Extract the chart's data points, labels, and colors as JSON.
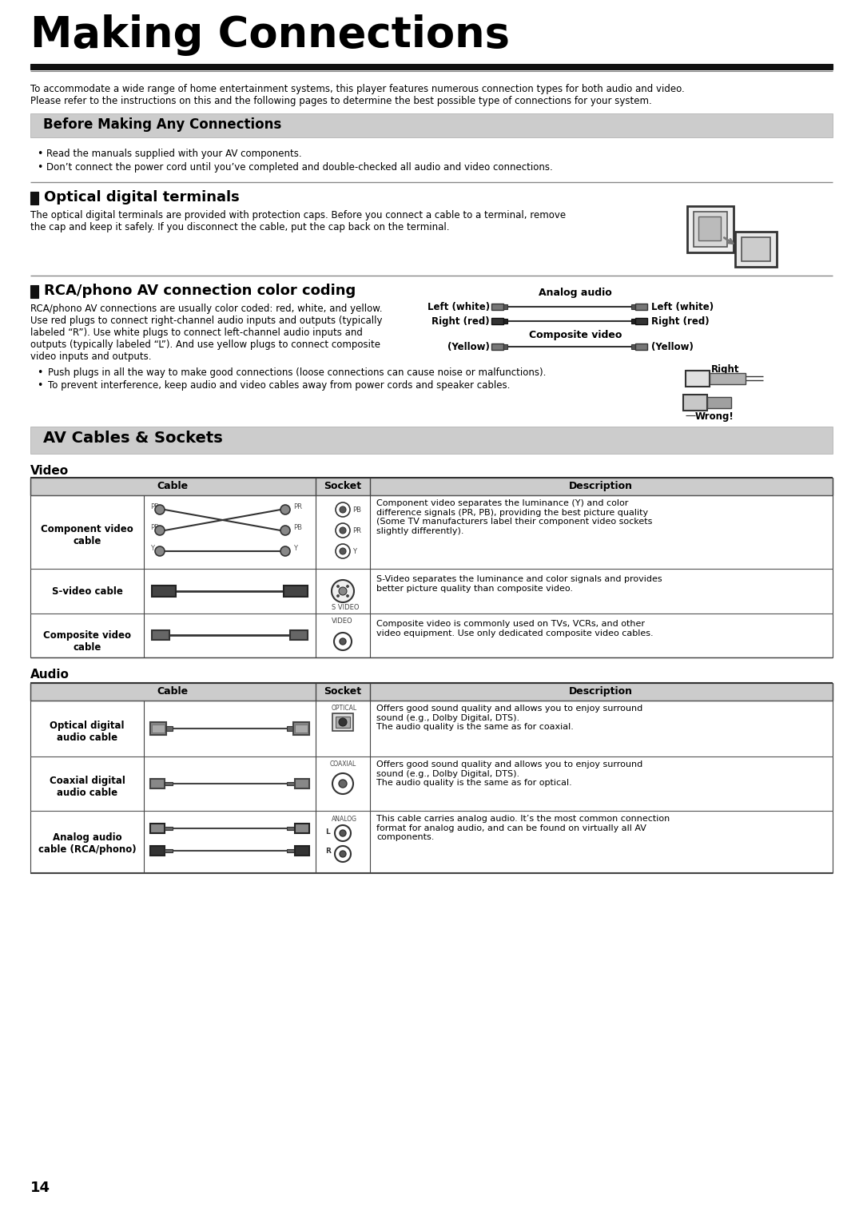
{
  "title": "Making Connections",
  "bg_color": "#ffffff",
  "intro_text_1": "To accommodate a wide range of home entertainment systems, this player features numerous connection types for both audio and video.",
  "intro_text_2": "Please refer to the instructions on this and the following pages to determine the best possible type of connections for your system.",
  "section1_title": "Before Making Any Connections",
  "section1_bullet1": "Read the manuals supplied with your AV components.",
  "section1_bullet2": "Don’t connect the power cord until you’ve completed and double-checked all audio and video connections.",
  "section2_title": "Optical digital terminals",
  "section2_text_1": "The optical digital terminals are provided with protection caps. Before you connect a cable to a terminal, remove",
  "section2_text_2": "the cap and keep it safely. If you disconnect the cable, put the cap back on the terminal.",
  "section3_title": "RCA/phono AV connection color coding",
  "section3_text": "RCA/phono AV connections are usually color coded: red, white, and yellow.\nUse red plugs to connect right-channel audio inputs and outputs (typically\nlabeled “R”). Use white plugs to connect left-channel audio inputs and\noutputs (typically labeled “L”). And use yellow plugs to connect composite\nvideo inputs and outputs.",
  "analog_audio_label": "Analog audio",
  "lw_left": "Left (white)",
  "lw_right": "Left (white)",
  "rr_left": "Right (red)",
  "rr_right": "Right (red)",
  "comp_video_label": "Composite video",
  "yellow_left": "(Yellow)",
  "yellow_right": "(Yellow)",
  "bullet3": "Push plugs in all the way to make good connections (loose connections can cause noise or malfunctions).",
  "bullet4": "To prevent interference, keep audio and video cables away from power cords and speaker cables.",
  "right_label": "Right",
  "wrong_label": "Wrong!",
  "section4_title": "AV Cables & Sockets",
  "video_label": "Video",
  "audio_label": "Audio",
  "col_cable": "Cable",
  "col_socket": "Socket",
  "col_desc": "Description",
  "v_row1_label": "Component video\ncable",
  "v_row1_desc": "Component video separates the luminance (Y) and color\ndifference signals (PR, PB), providing the best picture quality\n(Some TV manufacturers label their component video sockets\nslightly differently).",
  "v_row2_label": "S-video cable",
  "v_row2_desc": "S-Video separates the luminance and color signals and provides\nbetter picture quality than composite video.",
  "v_row3_label": "Composite video\ncable",
  "v_row3_desc": "Composite video is commonly used on TVs, VCRs, and other\nvideo equipment. Use only dedicated composite video cables.",
  "a_row1_label": "Optical digital\naudio cable",
  "a_row1_sock": "OPTICAL",
  "a_row1_desc": "Offers good sound quality and allows you to enjoy surround\nsound (e.g., Dolby Digital, DTS).\nThe audio quality is the same as for coaxial.",
  "a_row2_label": "Coaxial digital\naudio cable",
  "a_row2_sock": "COAXIAL",
  "a_row2_desc": "Offers good sound quality and allows you to enjoy surround\nsound (e.g., Dolby Digital, DTS).\nThe audio quality is the same as for optical.",
  "a_row3_label": "Analog audio\ncable (RCA/phono)",
  "a_row3_sock": "ANALOG",
  "a_row3_desc": "This cable carries analog audio. It’s the most common connection\nformat for analog audio, and can be found on virtually all AV\ncomponents.",
  "page_number": "14",
  "gray_section_bg": "#cccccc",
  "table_header_bg": "#cccccc",
  "dark_line": "#111111",
  "border": "#555555"
}
